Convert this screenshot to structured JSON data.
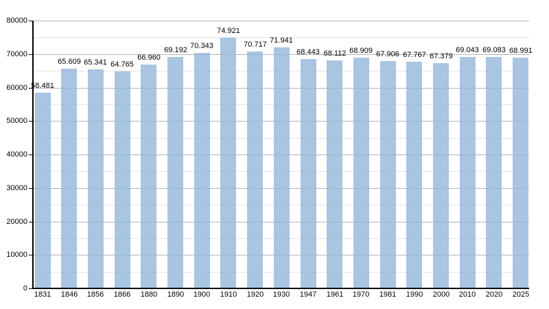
{
  "chart_data": {
    "type": "bar",
    "title": "",
    "xlabel": "",
    "ylabel": "",
    "legend": "none",
    "grid": "on",
    "categories": [
      "1831",
      "1846",
      "1856",
      "1866",
      "1880",
      "1890",
      "1900",
      "1910",
      "1920",
      "1930",
      "1947",
      "1961",
      "1970",
      "1981",
      "1990",
      "2000",
      "2010",
      "2020",
      "2025"
    ],
    "values": [
      58481,
      65609,
      65341,
      64765,
      66960,
      69192,
      70343,
      74921,
      70717,
      71941,
      68443,
      68112,
      68909,
      67906,
      67767,
      67379,
      69043,
      69083,
      68991
    ],
    "value_labels": [
      "58.481",
      "65.609",
      "65.341",
      "64.765",
      "66.960",
      "69.192",
      "70.343",
      "74.921",
      "70.717",
      "71.941",
      "68.443",
      "68.112",
      "68.909",
      "67.906",
      "67.767",
      "67.379",
      "69.043",
      "69.083",
      "68.991"
    ],
    "ylim": [
      0,
      80000
    ],
    "ytick_step": 10000,
    "yminor_step": 5000,
    "ytick_labels": [
      "0",
      "10000",
      "20000",
      "30000",
      "40000",
      "50000",
      "60000",
      "70000",
      "80000"
    ],
    "colors": {
      "bar_fill": "rgba(147,183,219,0.8)",
      "grid_major": "#b4b4b4",
      "grid_minor": "#e4e4e4",
      "axis": "#000000",
      "text": "#000000",
      "background": "#ffffff"
    }
  }
}
